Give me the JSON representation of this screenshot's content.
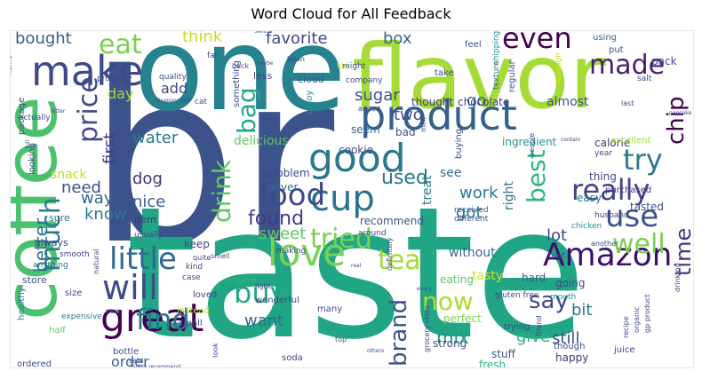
{
  "title": "Word Cloud for All Feedback",
  "chart_data": {
    "type": "word_cloud",
    "title": "Word Cloud for All Feedback",
    "background": "#ffffff",
    "colormap": "viridis",
    "words": [
      {
        "text": "br",
        "weight": 1.0,
        "color": "#3b528b"
      },
      {
        "text": "taste",
        "weight": 0.9,
        "color": "#21a685"
      },
      {
        "text": "one",
        "weight": 0.75,
        "color": "#26828e"
      },
      {
        "text": "flavor",
        "weight": 0.7,
        "color": "#a5db36"
      },
      {
        "text": "coffee",
        "weight": 0.6,
        "color": "#4ac16d"
      },
      {
        "text": "product",
        "weight": 0.5,
        "color": "#355f8d"
      },
      {
        "text": "make",
        "weight": 0.45,
        "color": "#3e4989"
      },
      {
        "text": "good",
        "weight": 0.45,
        "color": "#2a788e"
      },
      {
        "text": "cup",
        "weight": 0.4,
        "color": "#2c728e"
      },
      {
        "text": "love",
        "weight": 0.42,
        "color": "#7ad151"
      },
      {
        "text": "great",
        "weight": 0.42,
        "color": "#440154"
      },
      {
        "text": "Amazon",
        "weight": 0.38,
        "color": "#3b0f70"
      },
      {
        "text": "food",
        "weight": 0.38,
        "color": "#3e4989"
      },
      {
        "text": "eat",
        "weight": 0.32,
        "color": "#7ad151"
      },
      {
        "text": "even",
        "weight": 0.35,
        "color": "#440154"
      },
      {
        "text": "made",
        "weight": 0.3,
        "color": "#481f70"
      },
      {
        "text": "use",
        "weight": 0.35,
        "color": "#3b528b"
      },
      {
        "text": "try",
        "weight": 0.33,
        "color": "#2a788e"
      },
      {
        "text": "really",
        "weight": 0.32,
        "color": "#414487"
      },
      {
        "text": "well",
        "weight": 0.33,
        "color": "#7ad151"
      },
      {
        "text": "little",
        "weight": 0.3,
        "color": "#31688e"
      },
      {
        "text": "will",
        "weight": 0.35,
        "color": "#3e4989"
      },
      {
        "text": "find",
        "weight": 0.3,
        "color": "#2a788e"
      },
      {
        "text": "tried",
        "weight": 0.3,
        "color": "#7ad151"
      },
      {
        "text": "tea",
        "weight": 0.3,
        "color": "#a5db36"
      },
      {
        "text": "buy",
        "weight": 0.3,
        "color": "#22a884"
      },
      {
        "text": "much",
        "weight": 0.32,
        "color": "#287d8e"
      },
      {
        "text": "price",
        "weight": 0.26,
        "color": "#3e4a89"
      },
      {
        "text": "bag",
        "weight": 0.26,
        "color": "#22a884"
      },
      {
        "text": "best",
        "weight": 0.26,
        "color": "#2fb47c"
      },
      {
        "text": "drink",
        "weight": 0.26,
        "color": "#5ec962"
      },
      {
        "text": "chip",
        "weight": 0.2,
        "color": "#440154"
      },
      {
        "text": "time",
        "weight": 0.24,
        "color": "#46327e"
      },
      {
        "text": "brand",
        "weight": 0.24,
        "color": "#3b528b"
      },
      {
        "text": "now",
        "weight": 0.24,
        "color": "#addc30"
      },
      {
        "text": "say",
        "weight": 0.2,
        "color": "#3e4989"
      },
      {
        "text": "found",
        "weight": 0.2,
        "color": "#443983"
      },
      {
        "text": "better",
        "weight": 0.18,
        "color": "#2c728e"
      },
      {
        "text": "used",
        "weight": 0.16,
        "color": "#2a788e"
      },
      {
        "text": "sugar",
        "weight": 0.14,
        "color": "#3b528b"
      },
      {
        "text": "favorite",
        "weight": 0.14,
        "color": "#3e4989"
      },
      {
        "text": "bought",
        "weight": 0.14,
        "color": "#355f8d"
      },
      {
        "text": "think",
        "weight": 0.13,
        "color": "#c2df23"
      },
      {
        "text": "box",
        "weight": 0.13,
        "color": "#31688e"
      },
      {
        "text": "water",
        "weight": 0.13,
        "color": "#2a788e"
      },
      {
        "text": "first",
        "weight": 0.14,
        "color": "#443a83"
      },
      {
        "text": "way",
        "weight": 0.14,
        "color": "#31688e"
      },
      {
        "text": "know",
        "weight": 0.12,
        "color": "#2a788e"
      },
      {
        "text": "need",
        "weight": 0.12,
        "color": "#3b528b"
      },
      {
        "text": "dog",
        "weight": 0.12,
        "color": "#46327e"
      },
      {
        "text": "nice",
        "weight": 0.12,
        "color": "#355f8d"
      },
      {
        "text": "sweet",
        "weight": 0.13,
        "color": "#5ec962"
      },
      {
        "text": "mix",
        "weight": 0.13,
        "color": "#21918c"
      },
      {
        "text": "want",
        "weight": 0.13,
        "color": "#31688e"
      },
      {
        "text": "give",
        "weight": 0.12,
        "color": "#2fb47c"
      },
      {
        "text": "still",
        "weight": 0.13,
        "color": "#3b528b"
      },
      {
        "text": "bit",
        "weight": 0.12,
        "color": "#2c728e"
      },
      {
        "text": "lot",
        "weight": 0.12,
        "color": "#3e4989"
      },
      {
        "text": "got",
        "weight": 0.12,
        "color": "#2a788e"
      },
      {
        "text": "work",
        "weight": 0.12,
        "color": "#2a788e"
      },
      {
        "text": "two",
        "weight": 0.12,
        "color": "#3e4989"
      },
      {
        "text": "go",
        "weight": 0.12,
        "color": "#31688e"
      },
      {
        "text": "add",
        "weight": 0.12,
        "color": "#3e4989"
      },
      {
        "text": "day",
        "weight": 0.11,
        "color": "#a5db36"
      },
      {
        "text": "order",
        "weight": 0.11,
        "color": "#31688e"
      },
      {
        "text": "chocolate",
        "weight": 0.1,
        "color": "#443983"
      },
      {
        "text": "delicious",
        "weight": 0.1,
        "color": "#5ec962"
      },
      {
        "text": "treat",
        "weight": 0.1,
        "color": "#2a788e"
      },
      {
        "text": "without",
        "weight": 0.1,
        "color": "#31688e"
      },
      {
        "text": "right",
        "weight": 0.09,
        "color": "#2c728e"
      },
      {
        "text": "see",
        "weight": 0.09,
        "color": "#31688e"
      },
      {
        "text": "tasted",
        "weight": 0.09,
        "color": "#3b528b"
      },
      {
        "text": "easy",
        "weight": 0.09,
        "color": "#2a788e"
      },
      {
        "text": "snack",
        "weight": 0.08,
        "color": "#b5de2b"
      },
      {
        "text": "almost",
        "weight": 0.09,
        "color": "#3b528b"
      },
      {
        "text": "ingredient",
        "weight": 0.08,
        "color": "#21918c"
      },
      {
        "text": "calorie",
        "weight": 0.08,
        "color": "#46327e"
      },
      {
        "text": "cookie",
        "weight": 0.08,
        "color": "#3e4989"
      },
      {
        "text": "recommend",
        "weight": 0.08,
        "color": "#3b528b"
      },
      {
        "text": "problem",
        "weight": 0.08,
        "color": "#3e4989"
      },
      {
        "text": "seem",
        "weight": 0.08,
        "color": "#31688e"
      },
      {
        "text": "bad",
        "weight": 0.08,
        "color": "#3b528b"
      },
      {
        "text": "thought",
        "weight": 0.08,
        "color": "#443983"
      },
      {
        "text": "pack",
        "weight": 0.08,
        "color": "#3e4989"
      },
      {
        "text": "tasty",
        "weight": 0.08,
        "color": "#d8e219"
      },
      {
        "text": "eating",
        "weight": 0.08,
        "color": "#5ec962"
      },
      {
        "text": "keep",
        "weight": 0.07,
        "color": "#3e4989"
      },
      {
        "text": "never",
        "weight": 0.07,
        "color": "#2c728e"
      },
      {
        "text": "always",
        "weight": 0.07,
        "color": "#3e4989"
      },
      {
        "text": "sure",
        "weight": 0.07,
        "color": "#2a788e"
      },
      {
        "text": "store",
        "weight": 0.07,
        "color": "#3b528b"
      },
      {
        "text": "item",
        "weight": 0.07,
        "color": "#46327e"
      },
      {
        "text": "review",
        "weight": 0.07,
        "color": "#2fb47c"
      },
      {
        "text": "perfect",
        "weight": 0.07,
        "color": "#7ad151"
      },
      {
        "text": "strong",
        "weight": 0.07,
        "color": "#3b528b"
      },
      {
        "text": "stuff",
        "weight": 0.07,
        "color": "#3b528b"
      },
      {
        "text": "fresh",
        "weight": 0.07,
        "color": "#2fb47c"
      },
      {
        "text": "happy",
        "weight": 0.07,
        "color": "#46327e"
      },
      {
        "text": "hard",
        "weight": 0.07,
        "color": "#355f8d"
      },
      {
        "text": "going",
        "weight": 0.07,
        "color": "#3e4989"
      },
      {
        "text": "thing",
        "weight": 0.07,
        "color": "#3e4989"
      },
      {
        "text": "purchased",
        "weight": 0.06,
        "color": "#443983"
      },
      {
        "text": "excellent",
        "weight": 0.06,
        "color": "#a5db36"
      },
      {
        "text": "though",
        "weight": 0.06,
        "color": "#3e4989"
      },
      {
        "text": "less",
        "weight": 0.06,
        "color": "#3e4989"
      },
      {
        "text": "cloud",
        "weight": 0.06,
        "color": "#3b528b"
      },
      {
        "text": "quality",
        "weight": 0.05,
        "color": "#3b528b"
      },
      {
        "text": "something",
        "weight": 0.05,
        "color": "#3e4989"
      },
      {
        "text": "enjoy",
        "weight": 0.05,
        "color": "#21918c"
      },
      {
        "text": "looking",
        "weight": 0.05,
        "color": "#3e4989"
      },
      {
        "text": "healthy",
        "weight": 0.05,
        "color": "#2a788e"
      },
      {
        "text": "half",
        "weight": 0.05,
        "color": "#5ec962"
      },
      {
        "text": "anything",
        "weight": 0.05,
        "color": "#2c728e"
      },
      {
        "text": "smooth",
        "weight": 0.05,
        "color": "#3e4989"
      },
      {
        "text": "usually",
        "weight": 0.05,
        "color": "#3e4989"
      },
      {
        "text": "size",
        "weight": 0.05,
        "color": "#3e4989"
      },
      {
        "text": "expensive",
        "weight": 0.05,
        "color": "#2a788e"
      },
      {
        "text": "bottle",
        "weight": 0.05,
        "color": "#3e4989"
      },
      {
        "text": "ordered",
        "weight": 0.05,
        "color": "#3e4989"
      },
      {
        "text": "instead",
        "weight": 0.05,
        "color": "#a5db36"
      },
      {
        "text": "small",
        "weight": 0.05,
        "color": "#3e4989"
      },
      {
        "text": "loved",
        "weight": 0.05,
        "color": "#3e4989"
      },
      {
        "text": "wonderful",
        "weight": 0.05,
        "color": "#3e4989"
      },
      {
        "text": "many",
        "weight": 0.05,
        "color": "#3e4989"
      },
      {
        "text": "come",
        "weight": 0.05,
        "color": "#21918c"
      },
      {
        "text": "soda",
        "weight": 0.05,
        "color": "#3e4989"
      },
      {
        "text": "juice",
        "weight": 0.05,
        "color": "#3e4989"
      },
      {
        "text": "mouth",
        "weight": 0.05,
        "color": "#21918c"
      },
      {
        "text": "trying",
        "weight": 0.05,
        "color": "#3e4989"
      },
      {
        "text": "buying",
        "weight": 0.05,
        "color": "#3e4989"
      },
      {
        "text": "regular",
        "weight": 0.05,
        "color": "#3b528b"
      },
      {
        "text": "package",
        "weight": 0.05,
        "color": "#3b528b"
      },
      {
        "text": "actually",
        "weight": 0.05,
        "color": "#3b528b"
      },
      {
        "text": "texture",
        "weight": 0.04,
        "color": "#31688e"
      },
      {
        "text": "using",
        "weight": 0.04,
        "color": "#31688e"
      },
      {
        "text": "put",
        "weight": 0.04,
        "color": "#3e4989"
      },
      {
        "text": "take",
        "weight": 0.04,
        "color": "#3e4989"
      },
      {
        "text": "enough",
        "weight": 0.04,
        "color": "#d8e219"
      },
      {
        "text": "feel",
        "weight": 0.04,
        "color": "#3e4989"
      },
      {
        "text": "shipping",
        "weight": 0.04,
        "color": "#21918c"
      },
      {
        "text": "company",
        "weight": 0.04,
        "color": "#3e4989"
      },
      {
        "text": "might",
        "weight": 0.04,
        "color": "#3e4989"
      },
      {
        "text": "far",
        "weight": 0.04,
        "color": "#3e4989"
      },
      {
        "text": "probably",
        "weight": 0.04,
        "color": "#3e4989"
      },
      {
        "text": "kid",
        "weight": 0.04,
        "color": "#a5db36"
      },
      {
        "text": "salt",
        "weight": 0.04,
        "color": "#3e4989"
      },
      {
        "text": "year",
        "weight": 0.04,
        "color": "#3e4989"
      },
      {
        "text": "husband",
        "weight": 0.04,
        "color": "#3e4989"
      },
      {
        "text": "chicken",
        "weight": 0.04,
        "color": "#21918c"
      },
      {
        "text": "another",
        "weight": 0.04,
        "color": "#3e4989"
      },
      {
        "text": "different",
        "weight": 0.04,
        "color": "#3e4989"
      },
      {
        "text": "received",
        "weight": 0.04,
        "color": "#3b528b"
      },
      {
        "text": "href",
        "weight": 0.04,
        "color": "#3e4989"
      },
      {
        "text": "gluten free",
        "weight": 0.04,
        "color": "#3e4989"
      },
      {
        "text": "grocery store",
        "weight": 0.04,
        "color": "#3e4989"
      },
      {
        "text": "recipe",
        "weight": 0.04,
        "color": "#3e4989"
      },
      {
        "text": "organic",
        "weight": 0.04,
        "color": "#3e4989"
      },
      {
        "text": "gp product",
        "weight": 0.04,
        "color": "#3e4989"
      },
      {
        "text": "around",
        "weight": 0.04,
        "color": "#3e4989"
      },
      {
        "text": "definitely",
        "weight": 0.04,
        "color": "#3e4989"
      },
      {
        "text": "making",
        "weight": 0.04,
        "color": "#3e4989"
      },
      {
        "text": "natural",
        "weight": 0.04,
        "color": "#3e4989"
      },
      {
        "text": "case",
        "weight": 0.04,
        "color": "#3e4989"
      },
      {
        "text": "cat",
        "weight": 0.04,
        "color": "#3e4989"
      },
      {
        "text": "kind",
        "weight": 0.04,
        "color": "#3e4989"
      },
      {
        "text": "quite",
        "weight": 0.04,
        "color": "#3e4989"
      },
      {
        "text": "smell",
        "weight": 0.04,
        "color": "#3e4989"
      },
      {
        "text": "light",
        "weight": 0.04,
        "color": "#3e4989"
      },
      {
        "text": "top",
        "weight": 0.04,
        "color": "#3e4989"
      },
      {
        "text": "look",
        "weight": 0.04,
        "color": "#3e4989"
      },
      {
        "text": "said",
        "weight": 0.04,
        "color": "#3e4989"
      },
      {
        "text": "new",
        "weight": 0.04,
        "color": "#3e4989"
      },
      {
        "text": "friend",
        "weight": 0.04,
        "color": "#3e4989"
      },
      {
        "text": "home",
        "weight": 0.03,
        "color": "#3e4989"
      },
      {
        "text": "added",
        "weight": 0.03,
        "color": "#3e4989"
      },
      {
        "text": "people",
        "weight": 0.03,
        "color": "#3e4989"
      },
      {
        "text": "milk",
        "weight": 0.03,
        "color": "#3e4989"
      },
      {
        "text": "last",
        "weight": 0.03,
        "color": "#3e4989"
      },
      {
        "text": "drinking",
        "weight": 0.03,
        "color": "#3e4989"
      },
      {
        "text": "back",
        "weight": 0.03,
        "color": "#3e4989"
      },
      {
        "text": "disappointed",
        "weight": 0.03,
        "color": "#3e4989"
      },
      {
        "text": "highly recommend",
        "weight": 0.03,
        "color": "#3e4989"
      },
      {
        "text": "pancake",
        "weight": 0.03,
        "color": "#3e4989"
      },
      {
        "text": "blend",
        "weight": 0.03,
        "color": "#3e4989"
      },
      {
        "text": "bean",
        "weight": 0.03,
        "color": "#3e4989"
      },
      {
        "text": "maybe",
        "weight": 0.03,
        "color": "#3e4989"
      },
      {
        "text": "contain",
        "weight": 0.03,
        "color": "#3e4989"
      },
      {
        "text": "full",
        "weight": 0.03,
        "color": "#3e4989"
      },
      {
        "text": "every",
        "weight": 0.03,
        "color": "#3e4989"
      },
      {
        "text": "others",
        "weight": 0.03,
        "color": "#3e4989"
      },
      {
        "text": "real",
        "weight": 0.03,
        "color": "#3e4989"
      },
      {
        "text": "bitter",
        "weight": 0.03,
        "color": "#3e4989"
      },
      {
        "text": "Switch",
        "weight": 0.03,
        "color": "#3e4989"
      }
    ]
  }
}
